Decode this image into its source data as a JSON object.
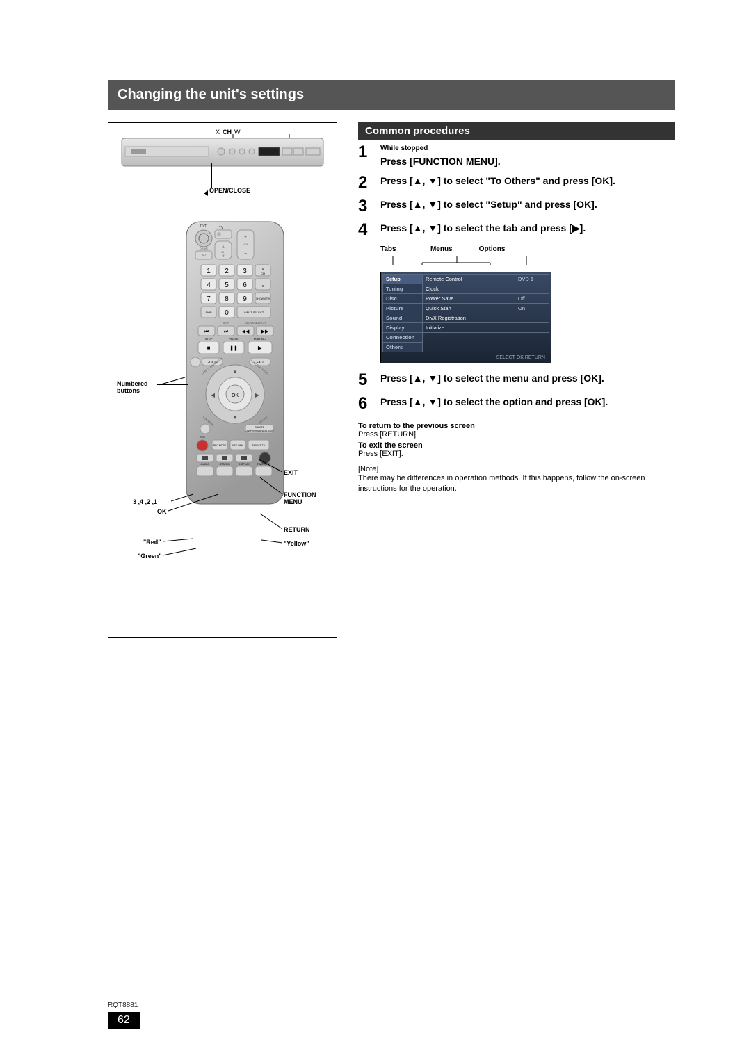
{
  "title": "Changing the unit's settings",
  "figure": {
    "ch_label_x": "X",
    "ch_label": "CH",
    "ch_label_w": "W",
    "openclose_marker": "<",
    "openclose": "OPEN/CLOSE",
    "callouts": {
      "numbered": "Numbered\nbuttons",
      "nums": "3 ,4 ,2 ,1",
      "ok": "OK",
      "red": "\"Red\"",
      "green": "\"Green\"",
      "exit": "EXIT",
      "function_menu": "FUNCTION\nMENU",
      "return": "RETURN",
      "yellow": "\"Yellow\""
    },
    "remote_icons": {
      "top_labels": [
        "DVD",
        "TV",
        "DRIVE SELECT",
        "AV",
        "VOL",
        "CH"
      ],
      "num_keys": [
        "1",
        "2",
        "3",
        "4",
        "5",
        "6",
        "7",
        "8",
        "9",
        "0"
      ],
      "nav_ok": "OK",
      "transport": [
        "STOP",
        "PAUSE",
        "PLAY x1.3"
      ],
      "bottom_row": [
        "REC",
        "REC MODE",
        "EXT LINK",
        "DIRECT TV",
        "AUDIO",
        "STATUS",
        "DISPLAY",
        "TIME SLIP"
      ],
      "side": [
        "SKIP",
        "SLOW/SEARCH",
        "INPUT SELECT",
        "SHOWVIEW",
        "CREATE CHAPTER",
        "MANUAL SKIP",
        "GUIDE",
        "EXIT",
        "DIRECT NAVIGATOR",
        "FUNCTION MENU",
        "SUB MENU",
        "RETURN"
      ]
    }
  },
  "section_header": "Common procedures",
  "steps": [
    {
      "n": "1",
      "mini": "While stopped",
      "body": "Press [FUNCTION MENU]."
    },
    {
      "n": "2",
      "body": "Press [▲, ▼] to select \"To Others\" and press [OK]."
    },
    {
      "n": "3",
      "body": "Press [▲, ▼] to select \"Setup\" and press [OK]."
    },
    {
      "n": "4",
      "body": "Press [▲, ▼] to select the tab and press [▶]."
    }
  ],
  "tmo": {
    "tabs": "Tabs",
    "menus": "Menus",
    "options": "Options"
  },
  "menu_figure": {
    "tabs": [
      "Setup",
      "Tuning",
      "Disc",
      "Picture",
      "Sound",
      "Display",
      "Connection",
      "Others"
    ],
    "rows": [
      {
        "menu": "Remote Control",
        "val": "DVD 1"
      },
      {
        "menu": "Clock",
        "val": ""
      },
      {
        "menu": "Power Save",
        "val": "Off"
      },
      {
        "menu": "Quick Start",
        "val": "On"
      },
      {
        "menu": "DivX Registration",
        "val": ""
      },
      {
        "menu": "Initialize",
        "val": ""
      }
    ],
    "footer": "SELECT  OK  RETURN",
    "colors": {
      "bg_grad_top": "#3a4a66",
      "bg_grad_bottom": "#1a2432",
      "border": "#5c6a80",
      "tab_bg": "#2e3d56",
      "tab_sel_bg": "#4a5d80",
      "text": "#ffffff",
      "dim_text": "#b8c2d4",
      "val_text": "#cfd7e6",
      "footer_text": "#a0a8b8"
    }
  },
  "steps2": [
    {
      "n": "5",
      "body": "Press [▲, ▼] to select the menu and press [OK]."
    },
    {
      "n": "6",
      "body": "Press [▲, ▼] to select the option and press [OK]."
    }
  ],
  "notes": {
    "return_head": "To return to the previous screen",
    "return_body": "Press [RETURN].",
    "exit_head": "To exit the screen",
    "exit_body": "Press [EXIT].",
    "note_label": "[Note]",
    "note_text": "There may be differences in operation methods. If this happens, follow the on-screen instructions for the operation."
  },
  "footer": {
    "rqt": "RQT8881",
    "page": "62"
  }
}
